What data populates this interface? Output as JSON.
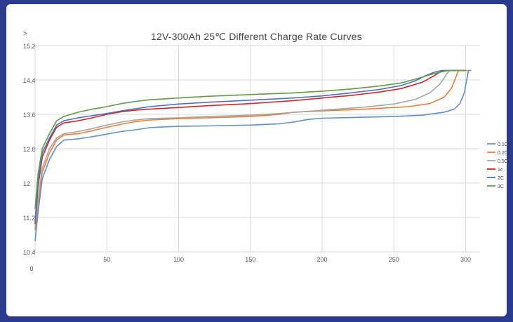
{
  "chart_data": {
    "type": "line",
    "title": "12V-300Ah 25℃ Different Charge Rate Curves",
    "ylabel": ">",
    "xlabel": "",
    "x_origin_label": "0",
    "xlim": [
      0,
      310
    ],
    "ylim": [
      10.4,
      15.2
    ],
    "x_ticks": [
      50,
      100,
      150,
      200,
      250,
      300
    ],
    "y_ticks": [
      "10.4",
      "11.2",
      "12",
      "12.8",
      "13.6",
      "14.4",
      "15.2"
    ],
    "grid": true,
    "legend_position": "right",
    "series": [
      {
        "name": "0.1C",
        "color": "#5b8fd1",
        "points": [
          [
            0,
            10.65
          ],
          [
            2,
            11.3
          ],
          [
            5,
            12.1
          ],
          [
            10,
            12.55
          ],
          [
            15,
            12.85
          ],
          [
            20,
            13.0
          ],
          [
            30,
            13.03
          ],
          [
            40,
            13.08
          ],
          [
            50,
            13.14
          ],
          [
            60,
            13.2
          ],
          [
            70,
            13.24
          ],
          [
            80,
            13.29
          ],
          [
            90,
            13.31
          ],
          [
            100,
            13.32
          ],
          [
            120,
            13.33
          ],
          [
            150,
            13.35
          ],
          [
            170,
            13.38
          ],
          [
            180,
            13.42
          ],
          [
            190,
            13.48
          ],
          [
            200,
            13.51
          ],
          [
            250,
            13.55
          ],
          [
            270,
            13.58
          ],
          [
            285,
            13.65
          ],
          [
            292,
            13.72
          ],
          [
            296,
            13.85
          ],
          [
            299,
            14.1
          ],
          [
            301,
            14.45
          ],
          [
            302,
            14.62
          ],
          [
            304,
            14.62
          ]
        ]
      },
      {
        "name": "0.2C",
        "color": "#ed7d31",
        "points": [
          [
            0,
            10.9
          ],
          [
            2,
            11.5
          ],
          [
            5,
            12.25
          ],
          [
            10,
            12.7
          ],
          [
            15,
            13.0
          ],
          [
            20,
            13.12
          ],
          [
            30,
            13.15
          ],
          [
            40,
            13.22
          ],
          [
            50,
            13.3
          ],
          [
            60,
            13.37
          ],
          [
            70,
            13.43
          ],
          [
            80,
            13.47
          ],
          [
            100,
            13.5
          ],
          [
            120,
            13.52
          ],
          [
            150,
            13.55
          ],
          [
            170,
            13.6
          ],
          [
            180,
            13.65
          ],
          [
            200,
            13.68
          ],
          [
            230,
            13.72
          ],
          [
            260,
            13.78
          ],
          [
            275,
            13.85
          ],
          [
            285,
            14.0
          ],
          [
            290,
            14.2
          ],
          [
            293,
            14.45
          ],
          [
            295,
            14.62
          ],
          [
            302,
            14.62
          ]
        ]
      },
      {
        "name": "0.5C",
        "color": "#a5a5a5",
        "points": [
          [
            0,
            10.95
          ],
          [
            2,
            11.6
          ],
          [
            5,
            12.35
          ],
          [
            10,
            12.8
          ],
          [
            15,
            13.05
          ],
          [
            20,
            13.15
          ],
          [
            30,
            13.2
          ],
          [
            40,
            13.27
          ],
          [
            50,
            13.35
          ],
          [
            60,
            13.42
          ],
          [
            70,
            13.47
          ],
          [
            80,
            13.5
          ],
          [
            100,
            13.52
          ],
          [
            120,
            13.55
          ],
          [
            150,
            13.58
          ],
          [
            170,
            13.62
          ],
          [
            190,
            13.67
          ],
          [
            210,
            13.72
          ],
          [
            230,
            13.77
          ],
          [
            250,
            13.84
          ],
          [
            265,
            13.95
          ],
          [
            275,
            14.1
          ],
          [
            282,
            14.3
          ],
          [
            287,
            14.55
          ],
          [
            289,
            14.62
          ],
          [
            300,
            14.62
          ]
        ]
      },
      {
        "name": "1c",
        "color": "#e02020",
        "points": [
          [
            0,
            11.05
          ],
          [
            2,
            11.9
          ],
          [
            5,
            12.6
          ],
          [
            10,
            13.0
          ],
          [
            15,
            13.3
          ],
          [
            20,
            13.4
          ],
          [
            30,
            13.45
          ],
          [
            40,
            13.52
          ],
          [
            50,
            13.6
          ],
          [
            60,
            13.66
          ],
          [
            70,
            13.7
          ],
          [
            80,
            13.72
          ],
          [
            100,
            13.76
          ],
          [
            120,
            13.8
          ],
          [
            150,
            13.85
          ],
          [
            180,
            13.92
          ],
          [
            200,
            13.98
          ],
          [
            220,
            14.04
          ],
          [
            240,
            14.12
          ],
          [
            255,
            14.2
          ],
          [
            270,
            14.35
          ],
          [
            278,
            14.5
          ],
          [
            283,
            14.6
          ],
          [
            286,
            14.62
          ],
          [
            300,
            14.62
          ]
        ]
      },
      {
        "name": "2C",
        "color": "#4472c4",
        "points": [
          [
            0,
            11.1
          ],
          [
            2,
            12.0
          ],
          [
            5,
            12.7
          ],
          [
            10,
            13.05
          ],
          [
            15,
            13.35
          ],
          [
            20,
            13.45
          ],
          [
            30,
            13.52
          ],
          [
            40,
            13.57
          ],
          [
            50,
            13.62
          ],
          [
            60,
            13.68
          ],
          [
            70,
            13.73
          ],
          [
            80,
            13.78
          ],
          [
            100,
            13.84
          ],
          [
            120,
            13.88
          ],
          [
            150,
            13.93
          ],
          [
            180,
            13.98
          ],
          [
            200,
            14.03
          ],
          [
            220,
            14.1
          ],
          [
            240,
            14.18
          ],
          [
            255,
            14.27
          ],
          [
            265,
            14.38
          ],
          [
            272,
            14.5
          ],
          [
            278,
            14.58
          ],
          [
            283,
            14.62
          ],
          [
            300,
            14.62
          ]
        ]
      },
      {
        "name": "3C",
        "color": "#5f9e3f",
        "points": [
          [
            0,
            11.4
          ],
          [
            2,
            12.2
          ],
          [
            5,
            12.8
          ],
          [
            10,
            13.15
          ],
          [
            15,
            13.45
          ],
          [
            20,
            13.55
          ],
          [
            30,
            13.65
          ],
          [
            40,
            13.72
          ],
          [
            50,
            13.78
          ],
          [
            60,
            13.85
          ],
          [
            70,
            13.9
          ],
          [
            80,
            13.94
          ],
          [
            100,
            13.98
          ],
          [
            120,
            14.02
          ],
          [
            150,
            14.06
          ],
          [
            180,
            14.1
          ],
          [
            200,
            14.14
          ],
          [
            220,
            14.19
          ],
          [
            240,
            14.26
          ],
          [
            255,
            14.33
          ],
          [
            265,
            14.42
          ],
          [
            275,
            14.52
          ],
          [
            282,
            14.58
          ],
          [
            288,
            14.62
          ],
          [
            300,
            14.62
          ]
        ]
      }
    ]
  }
}
